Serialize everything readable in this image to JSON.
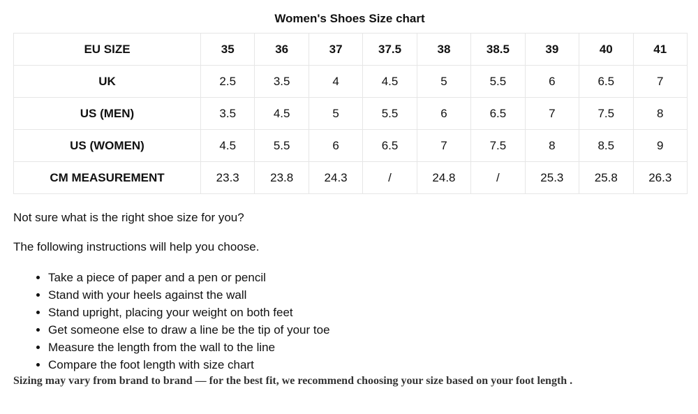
{
  "title": "Women's Shoes Size chart",
  "table": {
    "rows": [
      {
        "label": "EU SIZE",
        "values": [
          "35",
          "36",
          "37",
          "37.5",
          "38",
          "38.5",
          "39",
          "40",
          "41"
        ]
      },
      {
        "label": "UK",
        "values": [
          "2.5",
          "3.5",
          "4",
          "4.5",
          "5",
          "5.5",
          "6",
          "6.5",
          "7"
        ]
      },
      {
        "label": "US (MEN)",
        "values": [
          "3.5",
          "4.5",
          "5",
          "5.5",
          "6",
          "6.5",
          "7",
          "7.5",
          "8"
        ]
      },
      {
        "label": "US (WOMEN)",
        "values": [
          "4.5",
          "5.5",
          "6",
          "6.5",
          "7",
          "7.5",
          "8",
          "8.5",
          "9"
        ]
      },
      {
        "label": "CM MEASUREMENT",
        "values": [
          "23.3",
          "23.8",
          "24.3",
          "/",
          "24.8",
          "/",
          "25.3",
          "25.8",
          "26.3"
        ]
      }
    ]
  },
  "question": "Not sure what is the right shoe size for you?",
  "intro": "The following instructions will help you choose.",
  "steps": [
    "Take a piece of paper and a pen or pencil",
    "Stand with your heels against the wall",
    "Stand upright, placing your weight on both feet",
    "Get someone else to draw a line be the tip of your toe",
    "Measure the length from the wall to the line",
    "Compare the foot length with size chart"
  ],
  "note": "Sizing may vary from brand to brand — for the best fit, we recommend choosing your size based on your foot length ."
}
